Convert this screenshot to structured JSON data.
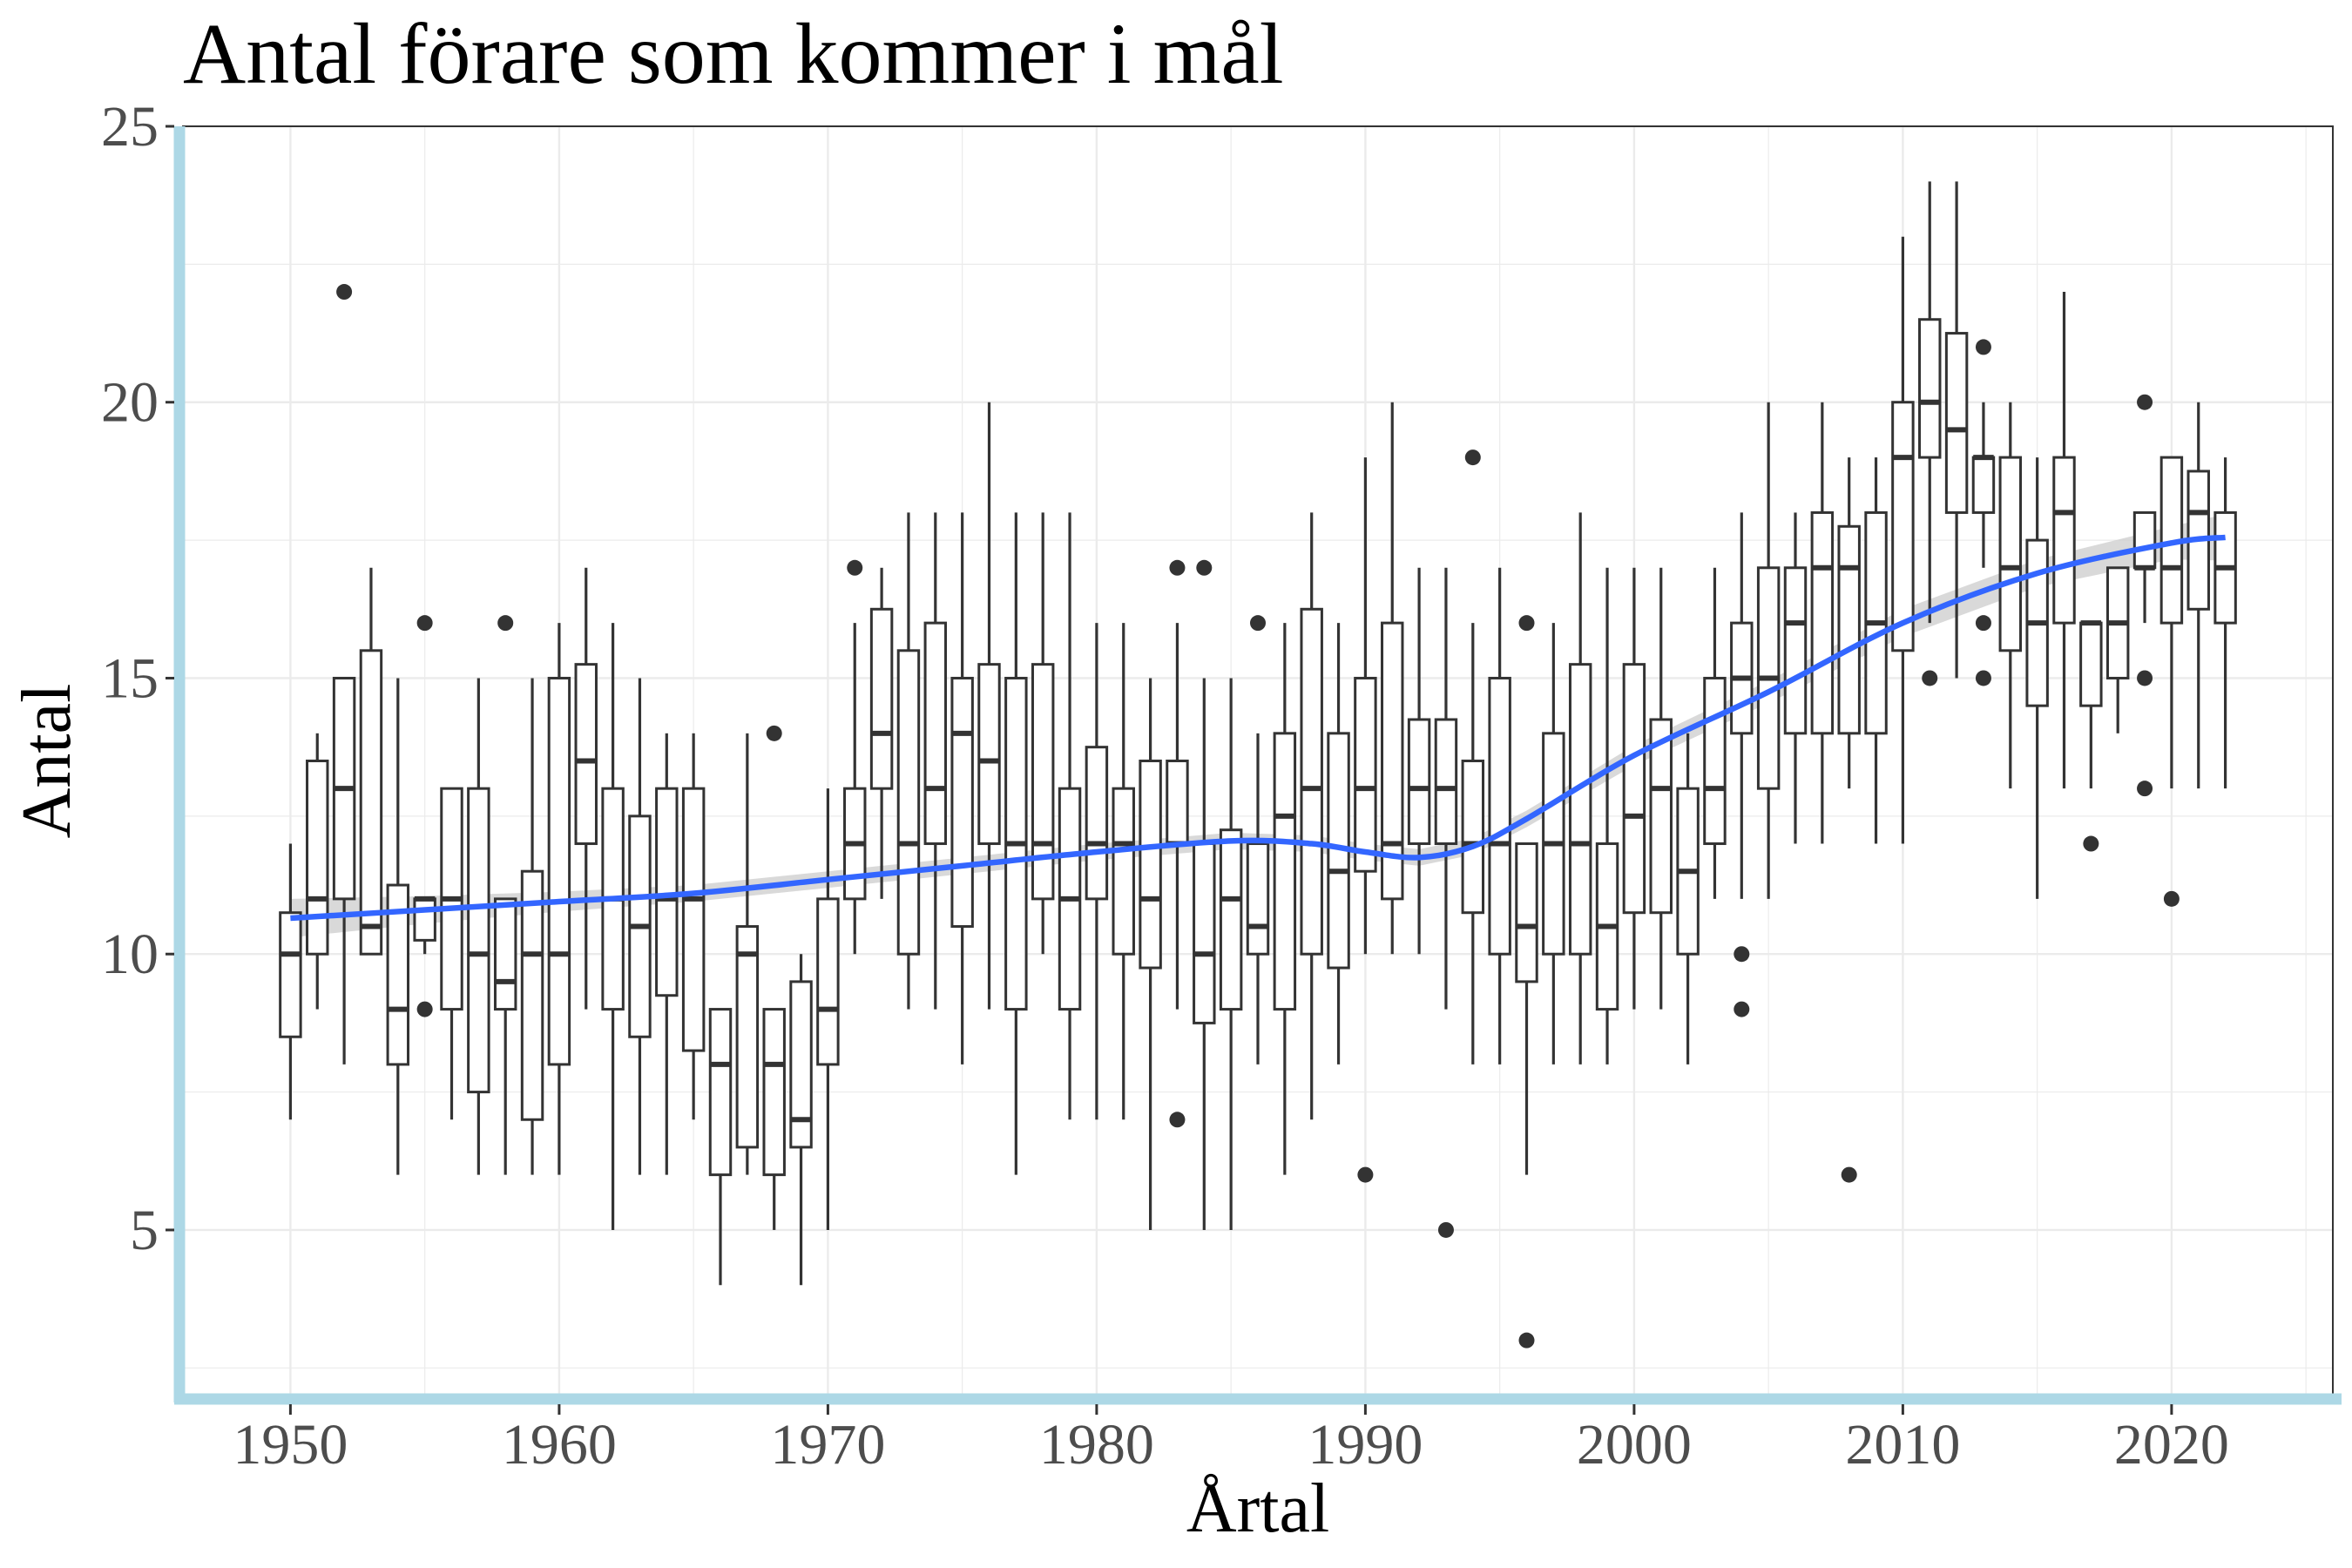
{
  "chart_data": {
    "type": "boxplot",
    "title": "Antal förare som kommer i mål",
    "xlabel": "Årtal",
    "ylabel": "Antal",
    "xlim": [
      1946,
      2026
    ],
    "ylim": [
      2,
      25
    ],
    "x_ticks": [
      1950,
      1960,
      1970,
      1980,
      1990,
      2000,
      2010,
      2020
    ],
    "y_ticks": [
      5,
      10,
      15,
      20,
      25
    ],
    "grid": true,
    "colors": {
      "box_stroke": "#333333",
      "smooth_line": "#3366FF",
      "confidence_band": "#cccccc",
      "axis_highlight": "#ADD8E6",
      "grid": "#ebebeb",
      "panel_border": "#333333"
    },
    "boxes": [
      {
        "year": 1950,
        "low": 7,
        "q1": 8.5,
        "median": 10,
        "q3": 10.75,
        "high": 12,
        "outliers": []
      },
      {
        "year": 1951,
        "low": 9,
        "q1": 10,
        "median": 11,
        "q3": 13.5,
        "high": 14,
        "outliers": []
      },
      {
        "year": 1952,
        "low": 8,
        "q1": 11,
        "median": 13,
        "q3": 15,
        "high": 15,
        "outliers": [
          22
        ]
      },
      {
        "year": 1953,
        "low": 10,
        "q1": 10,
        "median": 10.5,
        "q3": 15.5,
        "high": 17,
        "outliers": []
      },
      {
        "year": 1954,
        "low": 6,
        "q1": 8,
        "median": 9,
        "q3": 11.25,
        "high": 15,
        "outliers": []
      },
      {
        "year": 1955,
        "low": 10,
        "q1": 10.25,
        "median": 11,
        "q3": 11,
        "high": 11,
        "outliers": [
          16,
          9
        ]
      },
      {
        "year": 1956,
        "low": 7,
        "q1": 9,
        "median": 11,
        "q3": 13,
        "high": 13,
        "outliers": []
      },
      {
        "year": 1957,
        "low": 6,
        "q1": 7.5,
        "median": 10,
        "q3": 13,
        "high": 15,
        "outliers": []
      },
      {
        "year": 1958,
        "low": 6,
        "q1": 9,
        "median": 9.5,
        "q3": 11,
        "high": 11,
        "outliers": [
          16
        ]
      },
      {
        "year": 1959,
        "low": 6,
        "q1": 7,
        "median": 10,
        "q3": 11.5,
        "high": 15,
        "outliers": []
      },
      {
        "year": 1960,
        "low": 6,
        "q1": 8,
        "median": 10,
        "q3": 15,
        "high": 16,
        "outliers": []
      },
      {
        "year": 1961,
        "low": 9,
        "q1": 12,
        "median": 13.5,
        "q3": 15.25,
        "high": 17,
        "outliers": []
      },
      {
        "year": 1962,
        "low": 5,
        "q1": 9,
        "median": 11,
        "q3": 13,
        "high": 16,
        "outliers": []
      },
      {
        "year": 1963,
        "low": 6,
        "q1": 8.5,
        "median": 10.5,
        "q3": 12.5,
        "high": 15,
        "outliers": []
      },
      {
        "year": 1964,
        "low": 6,
        "q1": 9.25,
        "median": 11,
        "q3": 13,
        "high": 14,
        "outliers": []
      },
      {
        "year": 1965,
        "low": 7,
        "q1": 8.25,
        "median": 11,
        "q3": 13,
        "high": 14,
        "outliers": []
      },
      {
        "year": 1966,
        "low": 4,
        "q1": 6,
        "median": 8,
        "q3": 9,
        "high": 9,
        "outliers": []
      },
      {
        "year": 1967,
        "low": 6,
        "q1": 6.5,
        "median": 10,
        "q3": 10.5,
        "high": 14,
        "outliers": []
      },
      {
        "year": 1968,
        "low": 5,
        "q1": 6,
        "median": 8,
        "q3": 9,
        "high": 9,
        "outliers": [
          14
        ]
      },
      {
        "year": 1969,
        "low": 4,
        "q1": 6.5,
        "median": 7,
        "q3": 9.5,
        "high": 10,
        "outliers": []
      },
      {
        "year": 1970,
        "low": 5,
        "q1": 8,
        "median": 9,
        "q3": 11,
        "high": 13,
        "outliers": []
      },
      {
        "year": 1971,
        "low": 10,
        "q1": 11,
        "median": 12,
        "q3": 13,
        "high": 16,
        "outliers": [
          17
        ]
      },
      {
        "year": 1972,
        "low": 11,
        "q1": 13,
        "median": 14,
        "q3": 16.25,
        "high": 17,
        "outliers": []
      },
      {
        "year": 1973,
        "low": 9,
        "q1": 10,
        "median": 12,
        "q3": 15.5,
        "high": 18,
        "outliers": []
      },
      {
        "year": 1974,
        "low": 9,
        "q1": 12,
        "median": 13,
        "q3": 16,
        "high": 18,
        "outliers": []
      },
      {
        "year": 1975,
        "low": 8,
        "q1": 10.5,
        "median": 14,
        "q3": 15,
        "high": 18,
        "outliers": []
      },
      {
        "year": 1976,
        "low": 9,
        "q1": 12,
        "median": 13.5,
        "q3": 15.25,
        "high": 20,
        "outliers": []
      },
      {
        "year": 1977,
        "low": 6,
        "q1": 9,
        "median": 12,
        "q3": 15,
        "high": 18,
        "outliers": []
      },
      {
        "year": 1978,
        "low": 10,
        "q1": 11,
        "median": 12,
        "q3": 15.25,
        "high": 18,
        "outliers": []
      },
      {
        "year": 1979,
        "low": 7,
        "q1": 9,
        "median": 11,
        "q3": 13,
        "high": 18,
        "outliers": []
      },
      {
        "year": 1980,
        "low": 7,
        "q1": 11,
        "median": 12,
        "q3": 13.75,
        "high": 16,
        "outliers": []
      },
      {
        "year": 1981,
        "low": 7,
        "q1": 10,
        "median": 12,
        "q3": 13,
        "high": 16,
        "outliers": []
      },
      {
        "year": 1982,
        "low": 5,
        "q1": 9.75,
        "median": 11,
        "q3": 13.5,
        "high": 15,
        "outliers": []
      },
      {
        "year": 1983,
        "low": 9,
        "q1": 12,
        "median": 12,
        "q3": 13.5,
        "high": 16,
        "outliers": [
          17,
          7
        ]
      },
      {
        "year": 1984,
        "low": 5,
        "q1": 8.75,
        "median": 10,
        "q3": 12,
        "high": 15,
        "outliers": [
          17
        ]
      },
      {
        "year": 1985,
        "low": 5,
        "q1": 9,
        "median": 11,
        "q3": 12.25,
        "high": 15,
        "outliers": []
      },
      {
        "year": 1986,
        "low": 8,
        "q1": 10,
        "median": 10.5,
        "q3": 12,
        "high": 14,
        "outliers": [
          16
        ]
      },
      {
        "year": 1987,
        "low": 6,
        "q1": 9,
        "median": 12.5,
        "q3": 14,
        "high": 16,
        "outliers": []
      },
      {
        "year": 1988,
        "low": 7,
        "q1": 10,
        "median": 13,
        "q3": 16.25,
        "high": 18,
        "outliers": []
      },
      {
        "year": 1989,
        "low": 8,
        "q1": 9.75,
        "median": 11.5,
        "q3": 14,
        "high": 16,
        "outliers": []
      },
      {
        "year": 1990,
        "low": 10,
        "q1": 11.5,
        "median": 13,
        "q3": 15,
        "high": 19,
        "outliers": [
          6
        ]
      },
      {
        "year": 1991,
        "low": 10,
        "q1": 11,
        "median": 12,
        "q3": 16,
        "high": 20,
        "outliers": []
      },
      {
        "year": 1992,
        "low": 10,
        "q1": 12,
        "median": 13,
        "q3": 14.25,
        "high": 17,
        "outliers": []
      },
      {
        "year": 1993,
        "low": 9,
        "q1": 12,
        "median": 13,
        "q3": 14.25,
        "high": 17,
        "outliers": [
          5
        ]
      },
      {
        "year": 1994,
        "low": 8,
        "q1": 10.75,
        "median": 12,
        "q3": 13.5,
        "high": 16,
        "outliers": [
          19
        ]
      },
      {
        "year": 1995,
        "low": 8,
        "q1": 10,
        "median": 12,
        "q3": 15,
        "high": 17,
        "outliers": []
      },
      {
        "year": 1996,
        "low": 6,
        "q1": 9.5,
        "median": 10.5,
        "q3": 12,
        "high": 12,
        "outliers": [
          16,
          3
        ]
      },
      {
        "year": 1997,
        "low": 8,
        "q1": 10,
        "median": 12,
        "q3": 14,
        "high": 16,
        "outliers": []
      },
      {
        "year": 1998,
        "low": 8,
        "q1": 10,
        "median": 12,
        "q3": 15.25,
        "high": 18,
        "outliers": []
      },
      {
        "year": 1999,
        "low": 8,
        "q1": 9,
        "median": 10.5,
        "q3": 12,
        "high": 17,
        "outliers": []
      },
      {
        "year": 2000,
        "low": 9,
        "q1": 10.75,
        "median": 12.5,
        "q3": 15.25,
        "high": 17,
        "outliers": []
      },
      {
        "year": 2001,
        "low": 9,
        "q1": 10.75,
        "median": 13,
        "q3": 14.25,
        "high": 17,
        "outliers": []
      },
      {
        "year": 2002,
        "low": 8,
        "q1": 10,
        "median": 11.5,
        "q3": 13,
        "high": 14,
        "outliers": []
      },
      {
        "year": 2003,
        "low": 11,
        "q1": 12,
        "median": 13,
        "q3": 15,
        "high": 17,
        "outliers": []
      },
      {
        "year": 2004,
        "low": 11,
        "q1": 14,
        "median": 15,
        "q3": 16,
        "high": 18,
        "outliers": [
          10,
          9
        ]
      },
      {
        "year": 2005,
        "low": 11,
        "q1": 13,
        "median": 15,
        "q3": 17,
        "high": 20,
        "outliers": []
      },
      {
        "year": 2006,
        "low": 12,
        "q1": 14,
        "median": 16,
        "q3": 17,
        "high": 18,
        "outliers": []
      },
      {
        "year": 2007,
        "low": 12,
        "q1": 14,
        "median": 17,
        "q3": 18,
        "high": 20,
        "outliers": []
      },
      {
        "year": 2008,
        "low": 13,
        "q1": 14,
        "median": 17,
        "q3": 17.75,
        "high": 19,
        "outliers": [
          6
        ]
      },
      {
        "year": 2009,
        "low": 12,
        "q1": 14,
        "median": 16,
        "q3": 18,
        "high": 19,
        "outliers": []
      },
      {
        "year": 2010,
        "low": 12,
        "q1": 15.5,
        "median": 19,
        "q3": 20,
        "high": 23,
        "outliers": []
      },
      {
        "year": 2011,
        "low": 16,
        "q1": 19,
        "median": 20,
        "q3": 21.5,
        "high": 24,
        "outliers": [
          15
        ]
      },
      {
        "year": 2012,
        "low": 15,
        "q1": 18,
        "median": 19.5,
        "q3": 21.25,
        "high": 24,
        "outliers": []
      },
      {
        "year": 2013,
        "low": 17,
        "q1": 18,
        "median": 19,
        "q3": 19,
        "high": 20,
        "outliers": [
          21,
          16,
          15
        ]
      },
      {
        "year": 2014,
        "low": 13,
        "q1": 15.5,
        "median": 17,
        "q3": 19,
        "high": 20,
        "outliers": []
      },
      {
        "year": 2015,
        "low": 11,
        "q1": 14.5,
        "median": 16,
        "q3": 17.5,
        "high": 19,
        "outliers": []
      },
      {
        "year": 2016,
        "low": 13,
        "q1": 16,
        "median": 18,
        "q3": 19,
        "high": 22,
        "outliers": []
      },
      {
        "year": 2017,
        "low": 13,
        "q1": 14.5,
        "median": 16,
        "q3": 16,
        "high": 16,
        "outliers": [
          12
        ]
      },
      {
        "year": 2018,
        "low": 14,
        "q1": 15,
        "median": 16,
        "q3": 17,
        "high": 17,
        "outliers": []
      },
      {
        "year": 2019,
        "low": 16,
        "q1": 17,
        "median": 17,
        "q3": 18,
        "high": 18,
        "outliers": [
          20,
          15,
          13
        ]
      },
      {
        "year": 2020,
        "low": 13,
        "q1": 16,
        "median": 17,
        "q3": 19,
        "high": 19,
        "outliers": [
          11
        ]
      },
      {
        "year": 2021,
        "low": 13,
        "q1": 16.25,
        "median": 18,
        "q3": 18.75,
        "high": 20,
        "outliers": []
      },
      {
        "year": 2022,
        "low": 13,
        "q1": 16,
        "median": 17,
        "q3": 18,
        "high": 19,
        "outliers": []
      }
    ],
    "smooth": {
      "method": "loess",
      "x": [
        1950,
        1955,
        1960,
        1965,
        1970,
        1975,
        1980,
        1985,
        1988,
        1990,
        1992,
        1994,
        1996,
        2000,
        2005,
        2010,
        2015,
        2020,
        2022
      ],
      "y": [
        10.65,
        10.8,
        10.95,
        11.1,
        11.35,
        11.6,
        11.85,
        12.05,
        12.0,
        11.85,
        11.75,
        11.95,
        12.45,
        13.6,
        14.75,
        16.0,
        16.9,
        17.45,
        17.55
      ],
      "se": [
        0.35,
        0.25,
        0.18,
        0.15,
        0.15,
        0.15,
        0.15,
        0.15,
        0.15,
        0.15,
        0.15,
        0.15,
        0.15,
        0.18,
        0.2,
        0.25,
        0.25,
        0.3,
        0.42
      ]
    }
  }
}
